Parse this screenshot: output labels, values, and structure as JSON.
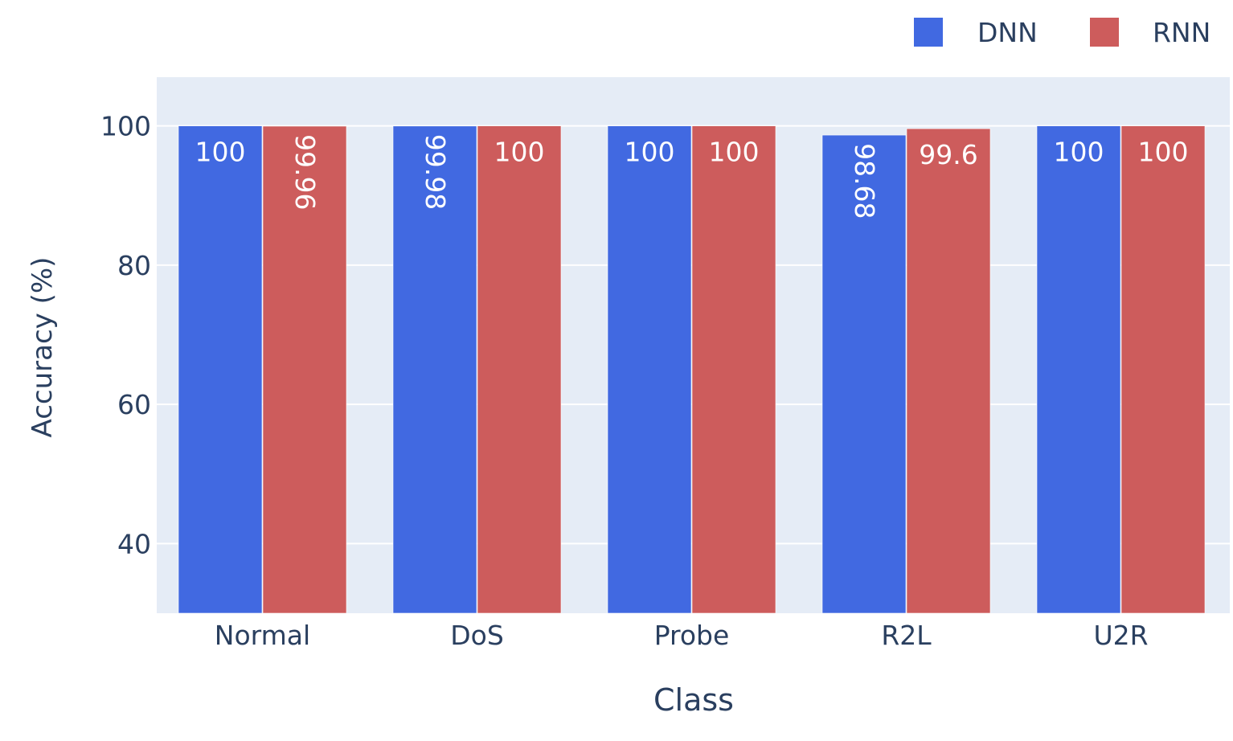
{
  "chart_data": {
    "type": "bar",
    "title": "",
    "xlabel": "Class",
    "ylabel": "Accuracy (%)",
    "categories": [
      "Normal",
      "DoS",
      "Probe",
      "R2L",
      "U2R"
    ],
    "series": [
      {
        "name": "DNN",
        "color": "#4169E1",
        "values": [
          100,
          99.98,
          100,
          98.68,
          100
        ],
        "labels": [
          "100",
          "99.98",
          "100",
          "98.68",
          "100"
        ]
      },
      {
        "name": "RNN",
        "color": "#CD5C5C",
        "values": [
          99.96,
          100,
          100,
          99.6,
          100
        ],
        "labels": [
          "99.96",
          "100",
          "100",
          "99.6",
          "100"
        ]
      }
    ],
    "ylim": [
      30,
      107
    ],
    "yticks": [
      40,
      60,
      80,
      100
    ],
    "grid": true,
    "legend_position": "top-right",
    "plot_background": "#E5ECF6"
  }
}
